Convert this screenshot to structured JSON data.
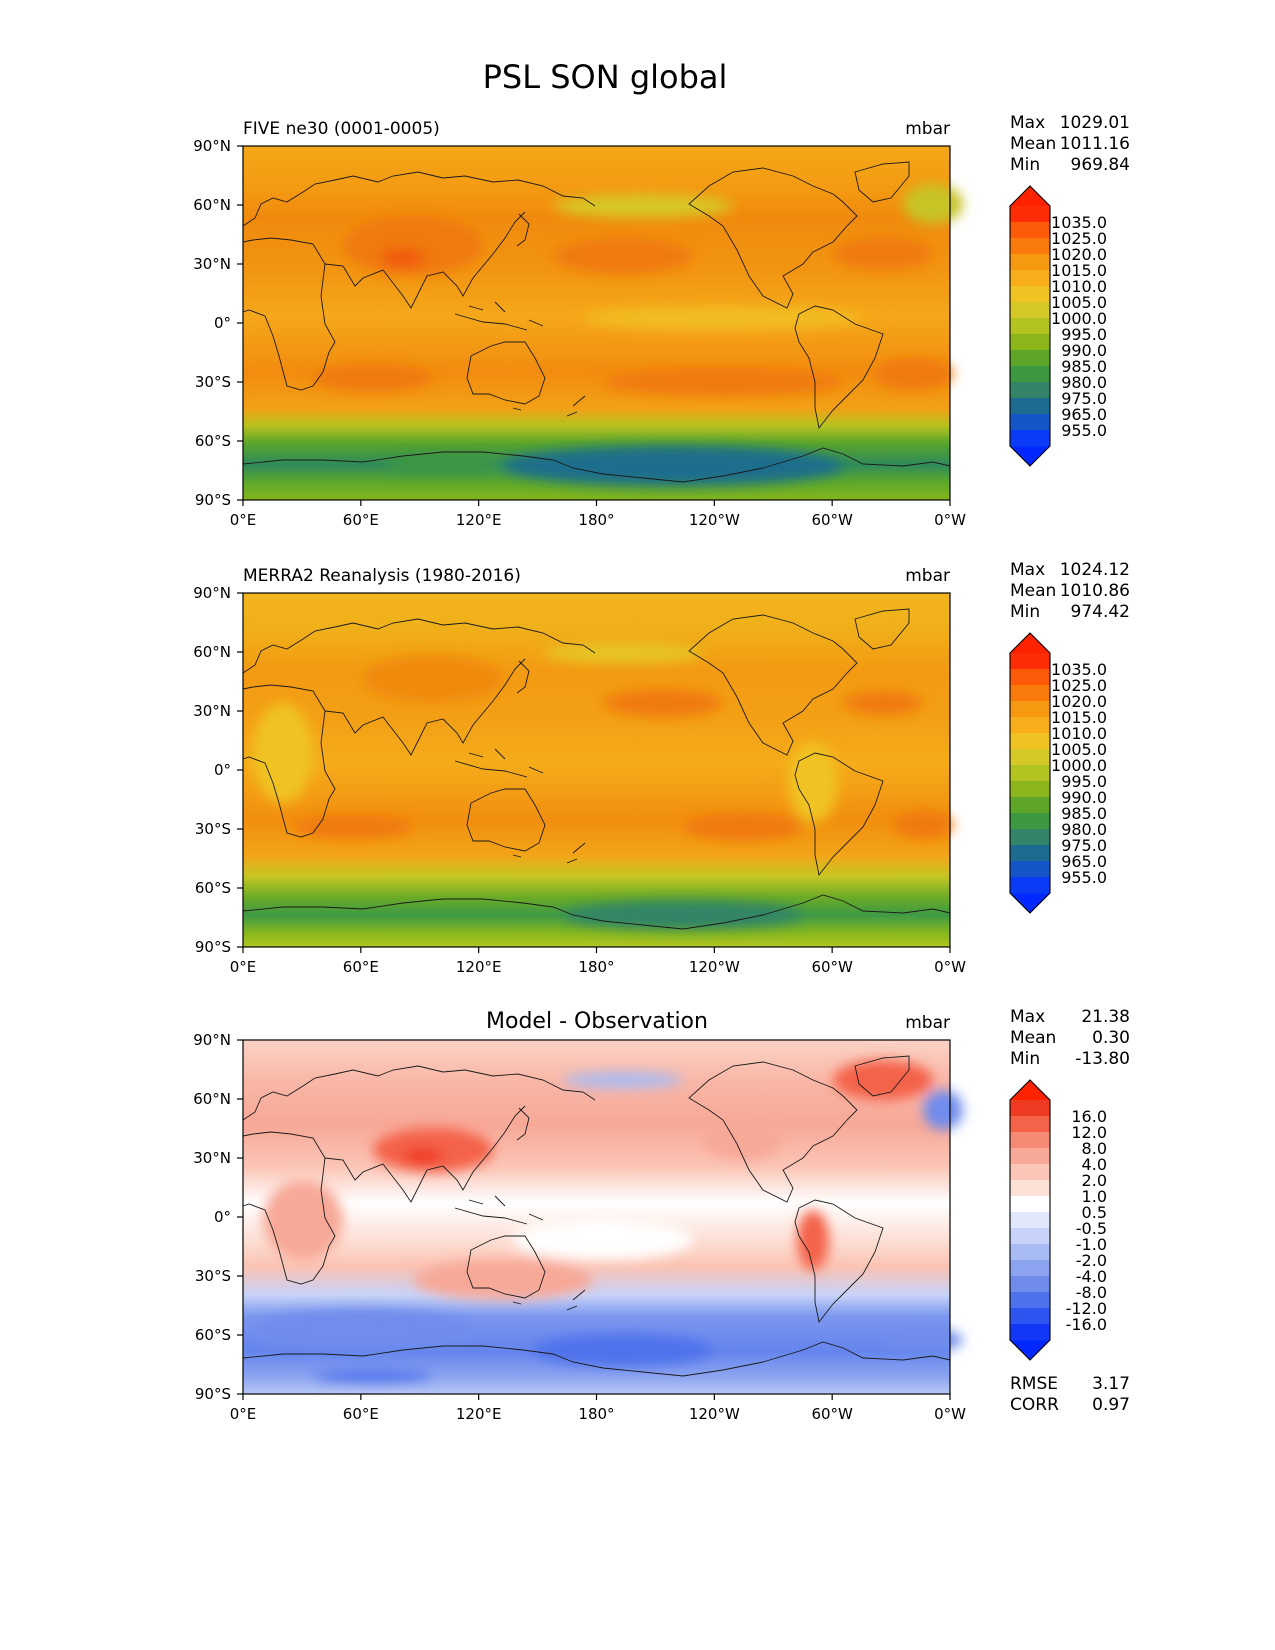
{
  "title": "PSL SON global",
  "axes": {
    "lat_labels": [
      "90°N",
      "60°N",
      "30°N",
      "0°",
      "30°S",
      "60°S",
      "90°S"
    ],
    "lon_labels": [
      "0°E",
      "60°E",
      "120°E",
      "180°",
      "120°W",
      "60°W",
      "0°W"
    ]
  },
  "panels": [
    {
      "id": "model",
      "left_title": "FIVE ne30 (0001-0005)",
      "center_title": "",
      "units": "mbar",
      "stats": [
        {
          "label": "Max",
          "value": "1029.01"
        },
        {
          "label": "Mean",
          "value": "1011.16"
        },
        {
          "label": "Min",
          "value": "969.84"
        }
      ],
      "colorbar": {
        "labels": [
          "1035.0",
          "1025.0",
          "1020.0",
          "1015.0",
          "1010.0",
          "1005.0",
          "1000.0",
          "995.0",
          "990.0",
          "985.0",
          "980.0",
          "975.0",
          "965.0",
          "955.0"
        ],
        "colors": [
          "#fe2d06",
          "#fc5a09",
          "#f97a0b",
          "#f79910",
          "#f7ae1a",
          "#f0c322",
          "#d4c926",
          "#b3c321",
          "#8bb51a",
          "#5da62a",
          "#3d9842",
          "#338468",
          "#1e6b92",
          "#1455c8",
          "#0a3bf5"
        ],
        "over_color": "#ff2200",
        "under_color": "#0028ff"
      }
    },
    {
      "id": "obs",
      "left_title": "MERRA2 Reanalysis (1980-2016)",
      "center_title": "",
      "units": "mbar",
      "stats": [
        {
          "label": "Max",
          "value": "1024.12"
        },
        {
          "label": "Mean",
          "value": "1010.86"
        },
        {
          "label": "Min",
          "value": "974.42"
        }
      ],
      "colorbar": {
        "labels": [
          "1035.0",
          "1025.0",
          "1020.0",
          "1015.0",
          "1010.0",
          "1005.0",
          "1000.0",
          "995.0",
          "990.0",
          "985.0",
          "980.0",
          "975.0",
          "965.0",
          "955.0"
        ],
        "colors": [
          "#fe2d06",
          "#fc5a09",
          "#f97a0b",
          "#f79910",
          "#f7ae1a",
          "#f0c322",
          "#d4c926",
          "#b3c321",
          "#8bb51a",
          "#5da62a",
          "#3d9842",
          "#338468",
          "#1e6b92",
          "#1455c8",
          "#0a3bf5"
        ],
        "over_color": "#ff2200",
        "under_color": "#0028ff"
      }
    },
    {
      "id": "diff",
      "left_title": "",
      "center_title": "Model - Observation",
      "units": "mbar",
      "stats": [
        {
          "label": "Max",
          "value": "21.38"
        },
        {
          "label": "Mean",
          "value": "0.30"
        },
        {
          "label": "Min",
          "value": "-13.80"
        }
      ],
      "extra_stats": [
        {
          "label": "RMSE",
          "value": "3.17"
        },
        {
          "label": "CORR",
          "value": "0.97"
        }
      ],
      "colorbar": {
        "labels": [
          "16.0",
          "12.0",
          "8.0",
          "4.0",
          "2.0",
          "1.0",
          "0.5",
          "-0.5",
          "-1.0",
          "-2.0",
          "-4.0",
          "-8.0",
          "-12.0",
          "-16.0"
        ],
        "colors": [
          "#ef3b22",
          "#f4624a",
          "#f68b75",
          "#f8a897",
          "#fbc6b7",
          "#fde1d7",
          "#ffffff",
          "#e2e8fb",
          "#c7d3f8",
          "#a9bbf4",
          "#8ca4f0",
          "#6f8ced",
          "#4f72ec",
          "#2f55f0",
          "#1238f5"
        ],
        "over_color": "#ff2200",
        "under_color": "#0028ff"
      }
    }
  ]
}
